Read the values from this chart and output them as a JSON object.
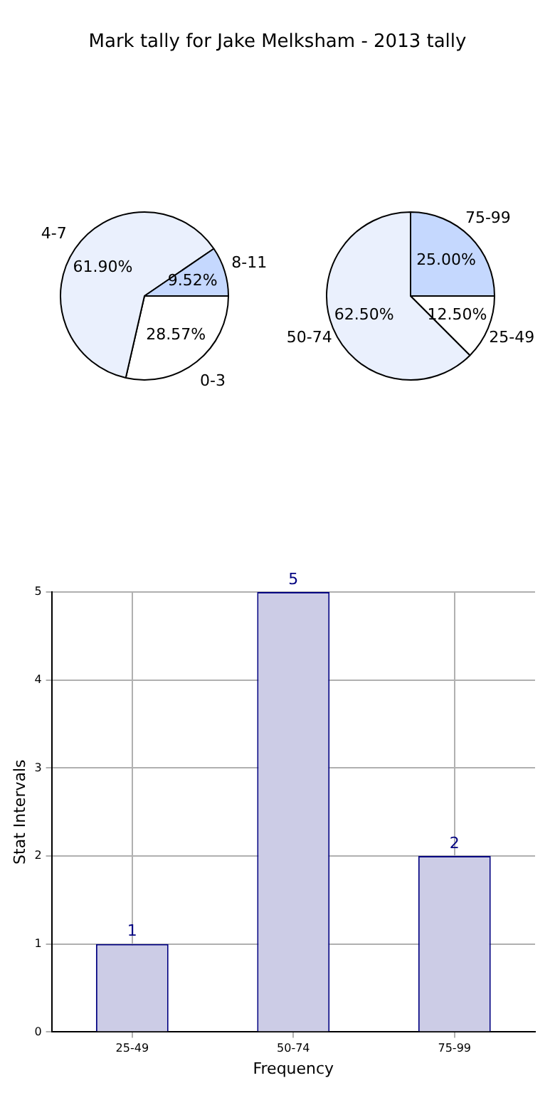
{
  "chart_data": [
    {
      "type": "pie",
      "title": "Mark tally for Jake Melksham - 2013 tally",
      "categories": [
        "0-3",
        "4-7",
        "8-11"
      ],
      "values": [
        28.57,
        61.9,
        9.52
      ],
      "colors": [
        "#ffffff",
        "#eaf0fd",
        "#c5d8fe"
      ],
      "value_labels": [
        "28.57%",
        "61.90%",
        "9.52%"
      ]
    },
    {
      "type": "pie",
      "categories": [
        "25-49",
        "50-74",
        "75-99"
      ],
      "values": [
        12.5,
        62.5,
        25
      ],
      "colors": [
        "#ffffff",
        "#eaf0fd",
        "#c5d8fe"
      ],
      "value_labels": [
        "12.50%",
        "62.50%",
        "25.00%"
      ]
    },
    {
      "type": "bar",
      "categories": [
        "25-49",
        "50-74",
        "75-99"
      ],
      "values": [
        1,
        5,
        2
      ],
      "color": "#cccce6",
      "xlabel": "Frequency",
      "ylabel": "Stat Intervals",
      "ylim": [
        0,
        5
      ],
      "yticks": [
        0,
        1,
        2,
        3,
        4,
        5
      ],
      "grid": true,
      "data_labels": true
    }
  ]
}
